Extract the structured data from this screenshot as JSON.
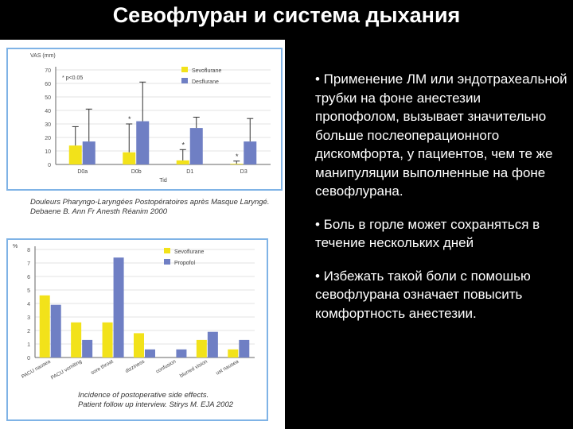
{
  "slide": {
    "title": "Севофлуран и система дыхания",
    "bullets": [
      "• Применение ЛМ или эндотрахеальной трубки на фоне анестезии пропофолом, вызывает значительно больше послеоперационного дискомфорта, у пациентов, чем те же манипуляции выполненные на фоне севофлурана.",
      "• Боль в горле может сохраняться в течение нескольких дней",
      "• Избежать такой боли с помошью севофлурана означает повысить комфортность анестезии."
    ]
  },
  "colors": {
    "yellow": "#f2e21a",
    "blue": "#6f7fc4",
    "frame": "#7fb3e6",
    "bullet_text": "#ffffff"
  },
  "captions": {
    "top": [
      "Douleurs Pharyngo-Laryngées Postopératoires après Masque Laryngé.",
      "Debaene B. Ann Fr Anesth Réanim 2000"
    ],
    "bottom": [
      "Incidence of postoperative side effects.",
      "Patient follow up interview. Stirys M. EJA 2002"
    ]
  },
  "chart_data": [
    {
      "type": "bar",
      "ylabel": "VAS (mm)",
      "annotation": "* p<0.05",
      "categories": [
        "D0a",
        "D0b",
        "D1",
        "D3"
      ],
      "xlabel": "Tid",
      "ylim": [
        0,
        70
      ],
      "yticks": [
        0,
        10,
        20,
        30,
        40,
        50,
        60,
        70
      ],
      "legend_position": "top-right",
      "series": [
        {
          "name": "Sevoflurane",
          "values": [
            14,
            9,
            3,
            0.5
          ],
          "errors": [
            14,
            21,
            8,
            2
          ]
        },
        {
          "name": "Desflurane",
          "values": [
            17,
            32,
            27,
            17
          ],
          "errors": [
            24,
            29,
            8,
            17
          ]
        }
      ],
      "significance": [
        "",
        "*",
        "*",
        "*"
      ]
    },
    {
      "type": "bar",
      "ylabel": "%",
      "categories": [
        "PACU nausea",
        "PACU vomiting",
        "sore throat",
        "dizziness",
        "confusion",
        "blurred vision",
        "ust nausea"
      ],
      "ylim": [
        0,
        8
      ],
      "yticks": [
        0,
        1,
        2,
        3,
        4,
        5,
        6,
        7,
        8
      ],
      "legend_position": "top-right",
      "series": [
        {
          "name": "Sevoflurane",
          "values": [
            4.6,
            2.6,
            2.6,
            1.8,
            0,
            1.3,
            0.6
          ]
        },
        {
          "name": "Propofol",
          "values": [
            3.9,
            1.3,
            7.4,
            0.6,
            0.6,
            1.9,
            1.3
          ]
        }
      ]
    }
  ]
}
